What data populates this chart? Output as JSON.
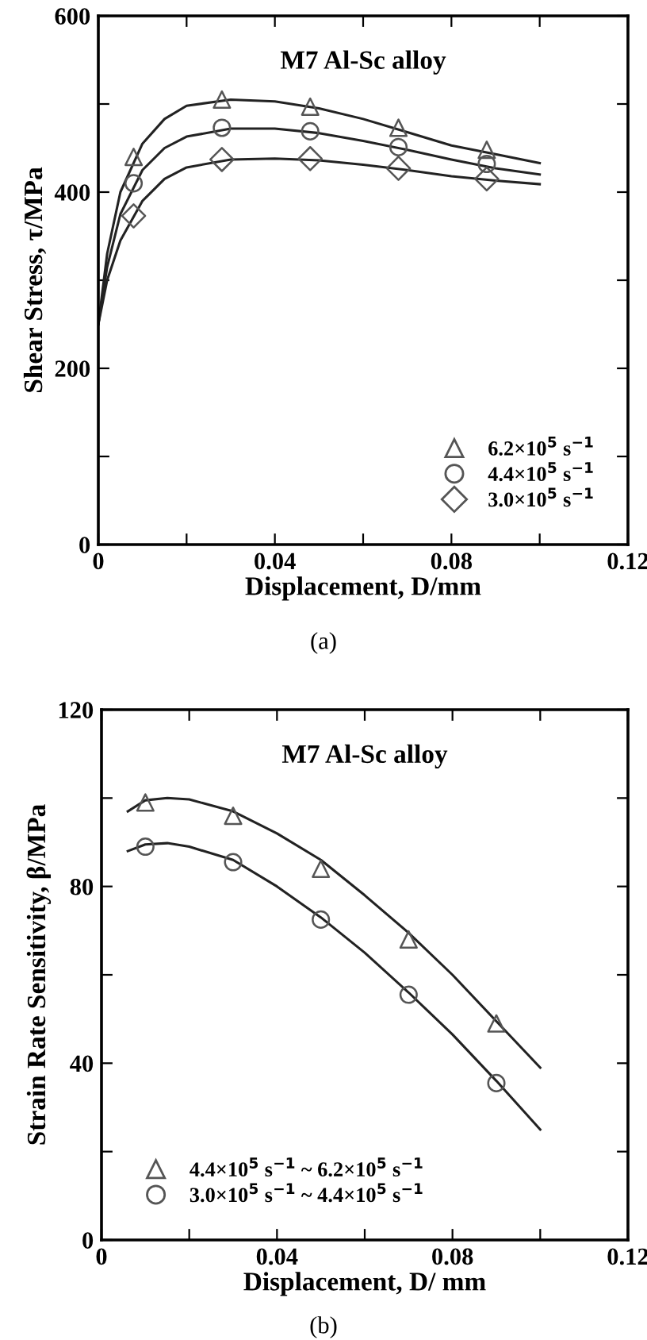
{
  "chart_data": [
    {
      "type": "scatter",
      "title": "M7 Al-Sc alloy",
      "xlabel": "Displacement, D/mm",
      "ylabel": "Shear Stress, τ/MPa",
      "annotations": [
        "(a)"
      ],
      "xlim": [
        0,
        0.12
      ],
      "ylim": [
        0,
        600
      ],
      "xticks": [
        0,
        {
          "value": 0.02,
          "label": null
        },
        0.04,
        {
          "value": 0.06,
          "label": null
        },
        0.08,
        {
          "value": 0.1,
          "label": null
        },
        0.12
      ],
      "yticks": [
        0,
        {
          "value": 100,
          "label": null
        },
        200,
        {
          "value": 300,
          "label": null
        },
        400,
        {
          "value": 500,
          "label": null
        },
        600
      ],
      "legend": "bottom right",
      "grid": false,
      "series": [
        {
          "name": "6.2×10$^{5}$ s$^{−1}$",
          "color": "#555555",
          "marker": "triangle",
          "x": [
            0.008,
            0.028,
            0.048,
            0.068,
            0.088
          ],
          "values": [
            440,
            505,
            497,
            473,
            448
          ]
        },
        {
          "name": "4.4×10$^{5}$ s$^{−1}$",
          "color": "#555555",
          "marker": "circle",
          "x": [
            0.008,
            0.028,
            0.048,
            0.068,
            0.088
          ],
          "values": [
            410,
            473,
            469,
            451,
            432
          ]
        },
        {
          "name": "3.0×10$^{5}$ s$^{−1}$",
          "color": "#555555",
          "marker": "diamond",
          "x": [
            0.008,
            0.028,
            0.048,
            0.068,
            0.088
          ],
          "values": [
            373,
            437,
            438,
            427,
            415
          ]
        },
        {
          "type": "line",
          "color": "#222222",
          "line_style": "solid",
          "x": [
            0,
            0.002,
            0.005,
            0.01,
            0.015,
            0.02,
            0.03,
            0.04,
            0.05,
            0.06,
            0.07,
            0.08,
            0.09,
            0.1
          ],
          "values": [
            250,
            330,
            400,
            455,
            483,
            498,
            505,
            503,
            495,
            483,
            468,
            453,
            443,
            433
          ]
        },
        {
          "type": "line",
          "color": "#222222",
          "line_style": "solid",
          "x": [
            0,
            0.002,
            0.005,
            0.01,
            0.015,
            0.02,
            0.03,
            0.04,
            0.05,
            0.06,
            0.07,
            0.08,
            0.09,
            0.1
          ],
          "values": [
            250,
            315,
            375,
            425,
            450,
            463,
            472,
            472,
            467,
            458,
            448,
            437,
            427,
            420
          ]
        },
        {
          "type": "line",
          "color": "#222222",
          "line_style": "solid",
          "x": [
            0,
            0.002,
            0.005,
            0.01,
            0.015,
            0.02,
            0.03,
            0.04,
            0.05,
            0.06,
            0.07,
            0.08,
            0.09,
            0.1
          ],
          "values": [
            250,
            300,
            345,
            390,
            415,
            428,
            437,
            438,
            436,
            431,
            425,
            418,
            413,
            409
          ]
        }
      ]
    },
    {
      "type": "scatter",
      "title": "M7 Al-Sc alloy",
      "xlabel": "Displacement, D/ mm",
      "ylabel": "Strain Rate Sensitivity, β/MPa",
      "annotations": [
        "(b)"
      ],
      "xlim": [
        0,
        0.12
      ],
      "ylim": [
        0,
        120
      ],
      "xticks": [
        0,
        {
          "value": 0.02,
          "label": null
        },
        0.04,
        {
          "value": 0.06,
          "label": null
        },
        0.08,
        {
          "value": 0.1,
          "label": null
        },
        0.12
      ],
      "yticks": [
        0,
        {
          "value": 20,
          "label": null
        },
        40,
        {
          "value": 60,
          "label": null
        },
        80,
        {
          "value": 100,
          "label": null
        },
        120
      ],
      "legend": "bottom left",
      "grid": false,
      "series": [
        {
          "name": "4.4×10$^{5}$ s$^{−1}$ ~ 6.2×10$^{5}$ s$^{−1}$",
          "color": "#555555",
          "marker": "triangle",
          "x": [
            0.01,
            0.03,
            0.05,
            0.07,
            0.09
          ],
          "values": [
            99,
            96,
            84,
            68,
            49
          ]
        },
        {
          "name": "3.0×10$^{5}$ s$^{−1}$ ~ 4.4×10$^{5}$ s$^{−1}$",
          "color": "#555555",
          "marker": "circle",
          "x": [
            0.01,
            0.03,
            0.05,
            0.07,
            0.09
          ],
          "values": [
            89,
            85.5,
            72.5,
            55.5,
            35.5
          ]
        },
        {
          "type": "line",
          "color": "#222222",
          "line_style": "solid",
          "x": [
            0.006,
            0.01,
            0.015,
            0.02,
            0.03,
            0.04,
            0.05,
            0.06,
            0.07,
            0.08,
            0.09,
            0.1
          ],
          "values": [
            97,
            99.5,
            100,
            99.7,
            97,
            92,
            86,
            78,
            69.5,
            60,
            49.5,
            39
          ]
        },
        {
          "type": "line",
          "color": "#222222",
          "line_style": "solid",
          "x": [
            0.006,
            0.01,
            0.015,
            0.02,
            0.03,
            0.04,
            0.05,
            0.06,
            0.07,
            0.08,
            0.09,
            0.1
          ],
          "values": [
            88,
            89.5,
            89.8,
            89,
            86,
            80,
            73,
            65,
            56,
            46.5,
            36,
            25
          ]
        }
      ]
    }
  ]
}
